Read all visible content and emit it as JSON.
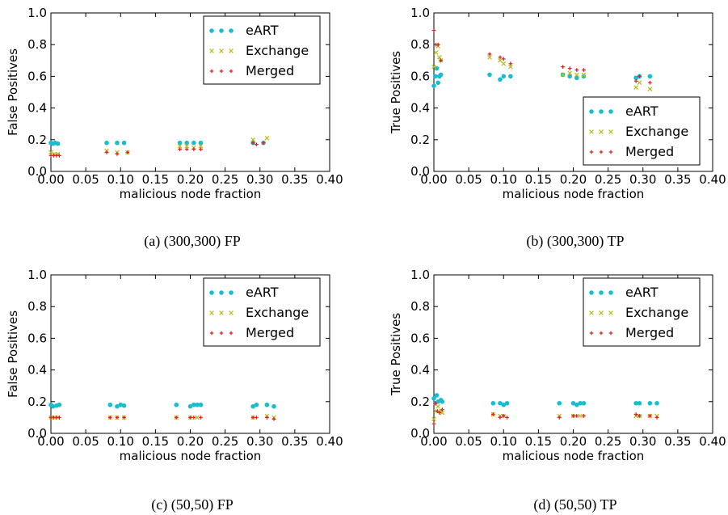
{
  "figure": {
    "x_axis_label": "malicious node fraction",
    "x_ticks": [
      "0.00",
      "0.05",
      "0.10",
      "0.15",
      "0.20",
      "0.25",
      "0.30",
      "0.35",
      "0.40"
    ],
    "y_ticks": [
      "0.0",
      "0.2",
      "0.4",
      "0.6",
      "0.8",
      "1.0"
    ],
    "legend_labels": [
      "eART",
      "Exchange",
      "Merged"
    ],
    "colors": {
      "eART": "#17becf",
      "Exchange": "#bcbd22",
      "Merged": "#d62728"
    }
  },
  "chart_data": [
    {
      "type": "scatter",
      "caption": "(a) (300,300) FP",
      "ylabel": "False Positives",
      "xlim": [
        0,
        0.4
      ],
      "ylim": [
        0,
        1.0
      ],
      "legend": "top-right",
      "series": [
        {
          "name": "eART",
          "marker": "dot",
          "points": [
            [
              0.0,
              0.18
            ],
            [
              0.003,
              0.175
            ],
            [
              0.006,
              0.18
            ],
            [
              0.01,
              0.175
            ],
            [
              0.08,
              0.18
            ],
            [
              0.095,
              0.18
            ],
            [
              0.105,
              0.18
            ],
            [
              0.185,
              0.18
            ],
            [
              0.195,
              0.18
            ],
            [
              0.205,
              0.18
            ],
            [
              0.215,
              0.18
            ],
            [
              0.29,
              0.18
            ],
            [
              0.305,
              0.18
            ]
          ]
        },
        {
          "name": "Exchange",
          "marker": "x",
          "points": [
            [
              0.0,
              0.12
            ],
            [
              0.005,
              0.11
            ],
            [
              0.01,
              0.11
            ],
            [
              0.08,
              0.13
            ],
            [
              0.095,
              0.12
            ],
            [
              0.11,
              0.12
            ],
            [
              0.185,
              0.16
            ],
            [
              0.195,
              0.16
            ],
            [
              0.205,
              0.15
            ],
            [
              0.215,
              0.16
            ],
            [
              0.29,
              0.2
            ],
            [
              0.31,
              0.21
            ]
          ]
        },
        {
          "name": "Merged",
          "marker": "plus",
          "points": [
            [
              0.0,
              0.1
            ],
            [
              0.004,
              0.1
            ],
            [
              0.008,
              0.1
            ],
            [
              0.012,
              0.1
            ],
            [
              0.08,
              0.12
            ],
            [
              0.095,
              0.11
            ],
            [
              0.11,
              0.12
            ],
            [
              0.185,
              0.14
            ],
            [
              0.195,
              0.14
            ],
            [
              0.205,
              0.14
            ],
            [
              0.215,
              0.14
            ],
            [
              0.29,
              0.18
            ],
            [
              0.295,
              0.17
            ],
            [
              0.305,
              0.18
            ]
          ]
        }
      ]
    },
    {
      "type": "scatter",
      "caption": "(b) (300,300) TP",
      "ylabel": "True Positives",
      "xlim": [
        0,
        0.4
      ],
      "ylim": [
        0,
        1.0
      ],
      "legend": "bottom-right",
      "series": [
        {
          "name": "eART",
          "marker": "dot",
          "points": [
            [
              0.0,
              0.54
            ],
            [
              0.002,
              0.6
            ],
            [
              0.004,
              0.65
            ],
            [
              0.006,
              0.56
            ],
            [
              0.008,
              0.6
            ],
            [
              0.01,
              0.61
            ],
            [
              0.08,
              0.61
            ],
            [
              0.095,
              0.58
            ],
            [
              0.1,
              0.6
            ],
            [
              0.11,
              0.6
            ],
            [
              0.185,
              0.61
            ],
            [
              0.195,
              0.6
            ],
            [
              0.205,
              0.59
            ],
            [
              0.215,
              0.6
            ],
            [
              0.29,
              0.59
            ],
            [
              0.295,
              0.6
            ],
            [
              0.31,
              0.6
            ]
          ]
        },
        {
          "name": "Exchange",
          "marker": "x",
          "points": [
            [
              0.0,
              0.66
            ],
            [
              0.003,
              0.75
            ],
            [
              0.006,
              0.79
            ],
            [
              0.008,
              0.72
            ],
            [
              0.01,
              0.7
            ],
            [
              0.08,
              0.72
            ],
            [
              0.095,
              0.7
            ],
            [
              0.1,
              0.68
            ],
            [
              0.11,
              0.66
            ],
            [
              0.185,
              0.61
            ],
            [
              0.195,
              0.62
            ],
            [
              0.205,
              0.61
            ],
            [
              0.215,
              0.61
            ],
            [
              0.29,
              0.53
            ],
            [
              0.295,
              0.56
            ],
            [
              0.31,
              0.52
            ]
          ]
        },
        {
          "name": "Merged",
          "marker": "plus",
          "points": [
            [
              0.0,
              0.89
            ],
            [
              0.003,
              0.8
            ],
            [
              0.006,
              0.8
            ],
            [
              0.01,
              0.7
            ],
            [
              0.08,
              0.74
            ],
            [
              0.095,
              0.72
            ],
            [
              0.1,
              0.71
            ],
            [
              0.11,
              0.68
            ],
            [
              0.185,
              0.66
            ],
            [
              0.195,
              0.65
            ],
            [
              0.205,
              0.64
            ],
            [
              0.215,
              0.64
            ],
            [
              0.29,
              0.57
            ],
            [
              0.295,
              0.6
            ],
            [
              0.31,
              0.56
            ]
          ]
        }
      ]
    },
    {
      "type": "scatter",
      "caption": "(c) (50,50) FP",
      "ylabel": "False Positives",
      "xlim": [
        0,
        0.4
      ],
      "ylim": [
        0,
        1.0
      ],
      "legend": "top-right",
      "series": [
        {
          "name": "eART",
          "marker": "dot",
          "points": [
            [
              0.0,
              0.18
            ],
            [
              0.003,
              0.17
            ],
            [
              0.008,
              0.175
            ],
            [
              0.012,
              0.18
            ],
            [
              0.085,
              0.18
            ],
            [
              0.095,
              0.17
            ],
            [
              0.1,
              0.18
            ],
            [
              0.105,
              0.175
            ],
            [
              0.18,
              0.18
            ],
            [
              0.2,
              0.17
            ],
            [
              0.205,
              0.18
            ],
            [
              0.21,
              0.18
            ],
            [
              0.215,
              0.18
            ],
            [
              0.29,
              0.17
            ],
            [
              0.295,
              0.18
            ],
            [
              0.31,
              0.18
            ],
            [
              0.32,
              0.17
            ]
          ]
        },
        {
          "name": "Exchange",
          "marker": "x",
          "points": [
            [
              0.0,
              0.1
            ],
            [
              0.005,
              0.1
            ],
            [
              0.01,
              0.1
            ],
            [
              0.085,
              0.1
            ],
            [
              0.095,
              0.1
            ],
            [
              0.105,
              0.1
            ],
            [
              0.18,
              0.1
            ],
            [
              0.2,
              0.1
            ],
            [
              0.21,
              0.1
            ],
            [
              0.29,
              0.1
            ],
            [
              0.31,
              0.11
            ],
            [
              0.32,
              0.1
            ]
          ]
        },
        {
          "name": "Merged",
          "marker": "plus",
          "points": [
            [
              0.0,
              0.1
            ],
            [
              0.004,
              0.1
            ],
            [
              0.008,
              0.1
            ],
            [
              0.012,
              0.1
            ],
            [
              0.085,
              0.1
            ],
            [
              0.095,
              0.1
            ],
            [
              0.105,
              0.1
            ],
            [
              0.18,
              0.1
            ],
            [
              0.2,
              0.1
            ],
            [
              0.205,
              0.1
            ],
            [
              0.215,
              0.1
            ],
            [
              0.29,
              0.1
            ],
            [
              0.295,
              0.1
            ],
            [
              0.31,
              0.1
            ],
            [
              0.32,
              0.09
            ]
          ]
        }
      ]
    },
    {
      "type": "scatter",
      "caption": "(d) (50,50) TP",
      "ylabel": "True Positives",
      "xlim": [
        0,
        0.4
      ],
      "ylim": [
        0,
        1.0
      ],
      "legend": "top-right",
      "series": [
        {
          "name": "eART",
          "marker": "dot",
          "points": [
            [
              0.0,
              0.22
            ],
            [
              0.002,
              0.19
            ],
            [
              0.004,
              0.24
            ],
            [
              0.006,
              0.2
            ],
            [
              0.01,
              0.21
            ],
            [
              0.012,
              0.2
            ],
            [
              0.085,
              0.19
            ],
            [
              0.095,
              0.19
            ],
            [
              0.1,
              0.18
            ],
            [
              0.105,
              0.19
            ],
            [
              0.18,
              0.19
            ],
            [
              0.2,
              0.19
            ],
            [
              0.205,
              0.18
            ],
            [
              0.21,
              0.19
            ],
            [
              0.215,
              0.19
            ],
            [
              0.29,
              0.19
            ],
            [
              0.295,
              0.19
            ],
            [
              0.31,
              0.19
            ],
            [
              0.32,
              0.19
            ]
          ]
        },
        {
          "name": "Exchange",
          "marker": "x",
          "points": [
            [
              0.0,
              0.09
            ],
            [
              0.003,
              0.14
            ],
            [
              0.006,
              0.17
            ],
            [
              0.01,
              0.14
            ],
            [
              0.012,
              0.13
            ],
            [
              0.085,
              0.12
            ],
            [
              0.095,
              0.11
            ],
            [
              0.1,
              0.11
            ],
            [
              0.18,
              0.11
            ],
            [
              0.2,
              0.11
            ],
            [
              0.21,
              0.11
            ],
            [
              0.29,
              0.11
            ],
            [
              0.295,
              0.11
            ],
            [
              0.31,
              0.11
            ],
            [
              0.32,
              0.11
            ]
          ]
        },
        {
          "name": "Merged",
          "marker": "plus",
          "points": [
            [
              0.0,
              0.06
            ],
            [
              0.002,
              0.19
            ],
            [
              0.005,
              0.14
            ],
            [
              0.008,
              0.13
            ],
            [
              0.012,
              0.15
            ],
            [
              0.085,
              0.12
            ],
            [
              0.095,
              0.1
            ],
            [
              0.1,
              0.11
            ],
            [
              0.105,
              0.1
            ],
            [
              0.18,
              0.1
            ],
            [
              0.2,
              0.11
            ],
            [
              0.205,
              0.11
            ],
            [
              0.215,
              0.11
            ],
            [
              0.29,
              0.12
            ],
            [
              0.295,
              0.11
            ],
            [
              0.31,
              0.11
            ],
            [
              0.32,
              0.1
            ]
          ]
        }
      ]
    }
  ]
}
